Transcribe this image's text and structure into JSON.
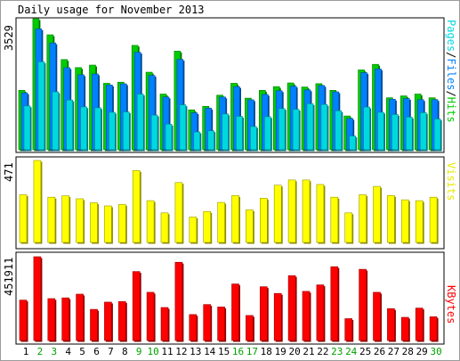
{
  "chart_data": [
    {
      "type": "bar",
      "title": "Daily usage for November 2013",
      "ylabel": "Pages/Files/Hits",
      "max_label": "3529",
      "categories": [
        "1",
        "2",
        "3",
        "4",
        "5",
        "6",
        "7",
        "8",
        "9",
        "10",
        "11",
        "12",
        "13",
        "14",
        "15",
        "16",
        "17",
        "18",
        "19",
        "20",
        "21",
        "22",
        "23",
        "24",
        "25",
        "26",
        "27",
        "28",
        "29",
        "30"
      ],
      "weekend_categories": [
        "2",
        "3",
        "9",
        "10",
        "16",
        "17",
        "23",
        "24",
        "30"
      ],
      "ylim": [
        0,
        3529
      ],
      "series": [
        {
          "name": "Hits",
          "values": [
            1600,
            3529,
            3096,
            2430,
            2213,
            2280,
            1790,
            1820,
            2811,
            2088,
            1500,
            2655,
            1075,
            1170,
            1470,
            1790,
            1390,
            1600,
            1700,
            1800,
            1690,
            1780,
            1600,
            910,
            2150,
            2300,
            1400,
            1450,
            1500,
            1400
          ]
        },
        {
          "name": "Files",
          "values": [
            1530,
            3255,
            2876,
            2210,
            2018,
            2040,
            1745,
            1775,
            2625,
            2003,
            1420,
            2435,
            995,
            1120,
            1420,
            1700,
            1346,
            1490,
            1590,
            1714,
            1612,
            1730,
            1560,
            842,
            2076,
            2177,
            1360,
            1380,
            1350,
            1350
          ]
        },
        {
          "name": "Pages",
          "values": [
            1180,
            2370,
            1560,
            1340,
            1155,
            1130,
            1010,
            1020,
            1500,
            935,
            690,
            1210,
            480,
            510,
            965,
            900,
            625,
            890,
            1110,
            1090,
            1240,
            1220,
            1050,
            370,
            1150,
            1010,
            950,
            880,
            1000,
            830
          ]
        }
      ],
      "colors": {
        "Hits": "#00cc00",
        "Files": "#0080ff",
        "Pages": "#00d8e0"
      }
    },
    {
      "type": "bar",
      "ylabel": "Visits",
      "max_label": "471",
      "ylim": [
        0,
        471
      ],
      "series": [
        {
          "name": "Visits",
          "values": [
            274,
            471,
            260,
            268,
            251,
            228,
            210,
            218,
            413,
            240,
            170,
            344,
            146,
            178,
            230,
            269,
            187,
            254,
            329,
            359,
            359,
            333,
            260,
            170,
            274,
            322,
            270,
            245,
            240,
            260
          ]
        }
      ],
      "colors": {
        "Visits": "#ffff00"
      }
    },
    {
      "type": "bar",
      "ylabel": "KBytes",
      "max_label": "451911",
      "ylim": [
        0,
        451911
      ],
      "series": [
        {
          "name": "KBytes",
          "values": [
            218000,
            451911,
            226000,
            230000,
            250000,
            168000,
            207000,
            210000,
            372000,
            260000,
            178000,
            422000,
            140000,
            194000,
            181000,
            305000,
            135000,
            290000,
            254000,
            350000,
            265000,
            300000,
            398000,
            118000,
            384000,
            260000,
            172000,
            125000,
            175000,
            128000
          ]
        }
      ],
      "colors": {
        "KBytes": "#ff0000"
      }
    }
  ]
}
